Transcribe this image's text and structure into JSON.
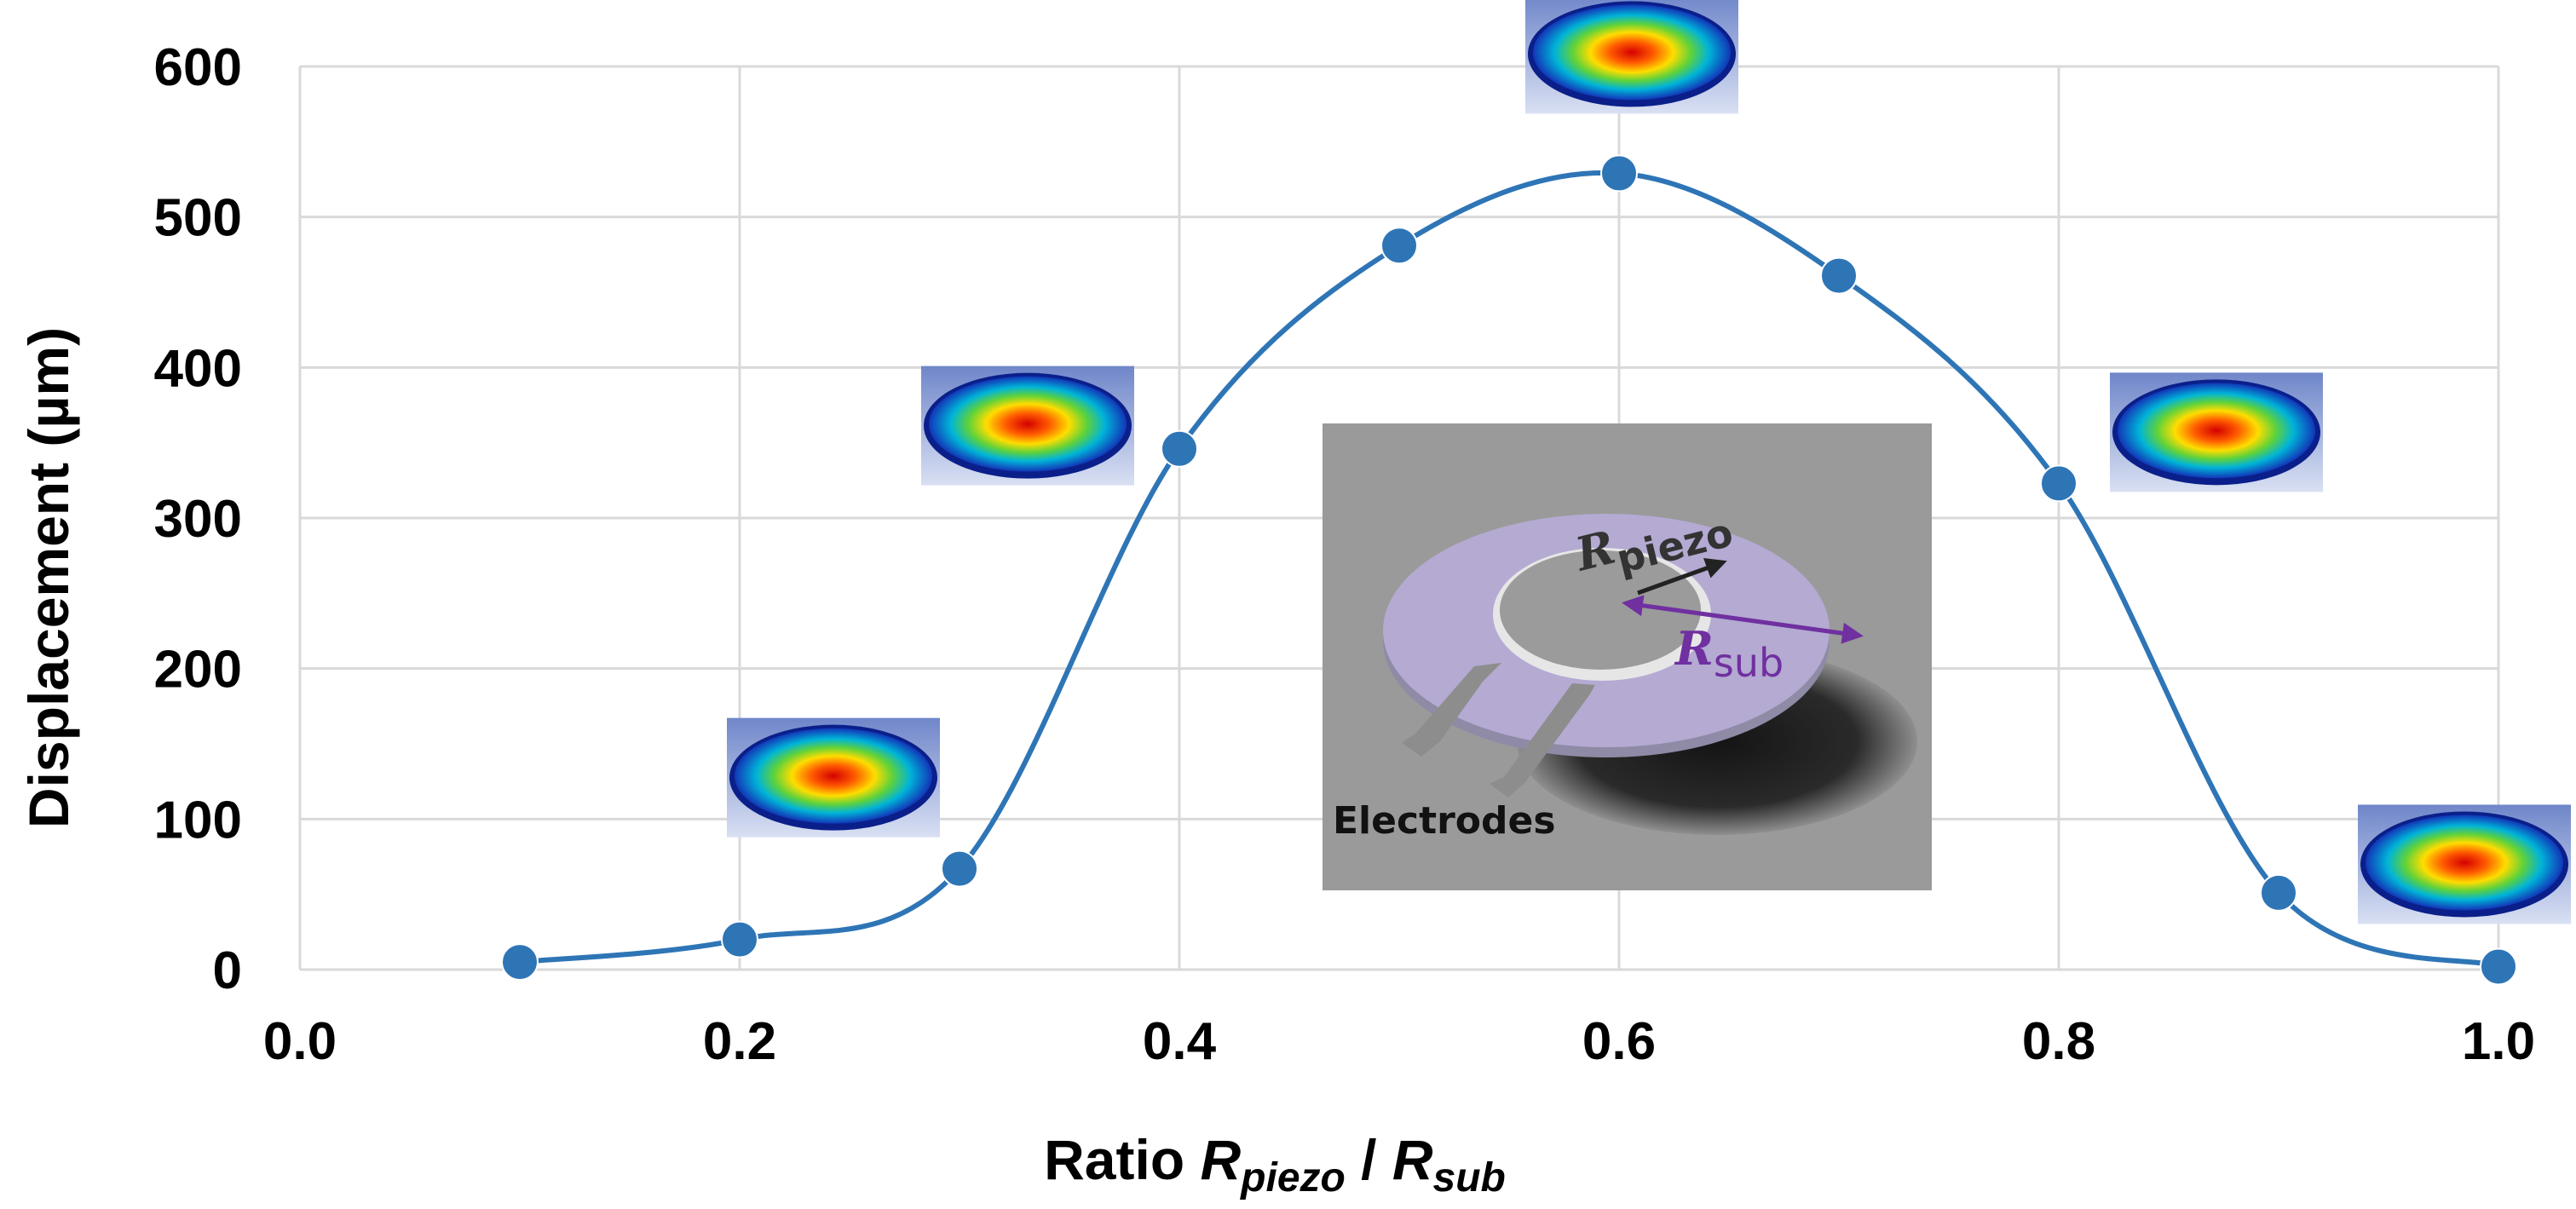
{
  "chart_data": {
    "type": "line",
    "title": "",
    "x": [
      0.1,
      0.2,
      0.3,
      0.4,
      0.5,
      0.6,
      0.7,
      0.8,
      0.9,
      1.0
    ],
    "series": [
      {
        "name": "",
        "values": [
          5,
          20,
          67,
          346,
          481,
          529,
          461,
          323,
          51,
          2
        ]
      }
    ],
    "xlim": [
      0.0,
      1.0
    ],
    "ylim": [
      0,
      600
    ],
    "xticks": [
      "0.0",
      "0.2",
      "0.4",
      "0.6",
      "0.8",
      "1.0"
    ],
    "yticks": [
      "0",
      "100",
      "200",
      "300",
      "400",
      "500",
      "600"
    ],
    "ylabel": "Displacement (µm)",
    "xlabel": {
      "prefix": "Ratio ",
      "num": "R",
      "num_sub": "piezo",
      "sep": " / ",
      "den": "R",
      "den_sub": "sub"
    },
    "grid": true,
    "legend": "none",
    "line_color": "#2e75b6",
    "marker_color": "#2e75b6",
    "mode_shape_at_x": [
      0.2,
      0.3,
      0.6,
      0.8,
      1.0
    ],
    "inset": {
      "label_rpiezo": "R",
      "label_rpiezo_sub": "piezo",
      "label_rsub": "R",
      "label_rsub_sub": "sub",
      "label_electrodes": "Electrodes",
      "rsub_color": "#7030a0",
      "rpiezo_color": "#222222"
    }
  }
}
